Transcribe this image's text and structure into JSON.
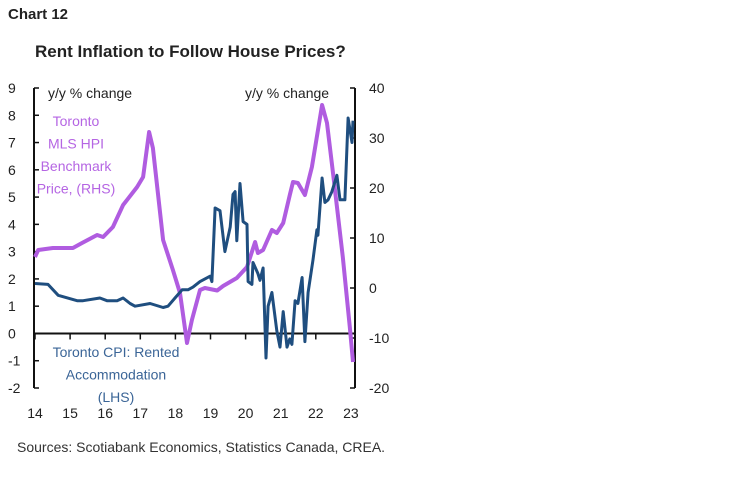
{
  "chart_label": "Chart 12",
  "sources": "Sources: Scotiabank Economics, Statistics Canada, CREA.",
  "chart_data": {
    "type": "line",
    "title": "Rent Inflation to Follow House Prices?",
    "left_axis": {
      "unit_label": "y/y % change",
      "range": [
        -2,
        9
      ],
      "ticks": [
        "9",
        "8",
        "7",
        "6",
        "5",
        "4",
        "3",
        "2",
        "1",
        "0",
        "-1",
        "-2"
      ]
    },
    "right_axis": {
      "unit_label": "y/y % change",
      "range": [
        -20,
        40
      ],
      "ticks": [
        "40",
        "30",
        "20",
        "10",
        "0",
        "-10",
        "-20"
      ]
    },
    "x_axis": {
      "range": [
        14,
        23.1
      ],
      "ticks": [
        "14",
        "15",
        "16",
        "17",
        "18",
        "19",
        "20",
        "21",
        "22",
        "23"
      ]
    },
    "grid": false,
    "series": [
      {
        "name": "Toronto CPI: Rented Accommodation (LHS)",
        "label_lines": [
          "Toronto CPI: Rented",
          "Accommodation",
          "(LHS)"
        ],
        "axis": "left",
        "color": "#1f4e7f",
        "points": [
          [
            14.0,
            1.83
          ],
          [
            14.37,
            1.8
          ],
          [
            14.66,
            1.4
          ],
          [
            15.2,
            1.2
          ],
          [
            15.37,
            1.2
          ],
          [
            15.85,
            1.3
          ],
          [
            16.05,
            1.2
          ],
          [
            16.34,
            1.2
          ],
          [
            16.51,
            1.3
          ],
          [
            16.71,
            1.1
          ],
          [
            16.85,
            1.0
          ],
          [
            17.28,
            1.1
          ],
          [
            17.65,
            0.95
          ],
          [
            17.79,
            1.0
          ],
          [
            17.99,
            1.3
          ],
          [
            18.19,
            1.6
          ],
          [
            18.36,
            1.6
          ],
          [
            18.5,
            1.7
          ],
          [
            18.7,
            1.9
          ],
          [
            18.99,
            2.1
          ],
          [
            19.04,
            1.9
          ],
          [
            19.13,
            4.6
          ],
          [
            19.27,
            4.5
          ],
          [
            19.41,
            3.0
          ],
          [
            19.56,
            3.9
          ],
          [
            19.64,
            5.1
          ],
          [
            19.7,
            5.2
          ],
          [
            19.75,
            3.4
          ],
          [
            19.84,
            5.5
          ],
          [
            19.93,
            4.1
          ],
          [
            20.04,
            4.0
          ],
          [
            20.07,
            1.9
          ],
          [
            20.18,
            1.8
          ],
          [
            20.21,
            2.6
          ],
          [
            20.35,
            2.2
          ],
          [
            20.41,
            1.95
          ],
          [
            20.5,
            2.4
          ],
          [
            20.58,
            -0.9
          ],
          [
            20.64,
            1.0
          ],
          [
            20.75,
            1.5
          ],
          [
            20.89,
            0.1
          ],
          [
            20.98,
            -0.5
          ],
          [
            21.07,
            0.8
          ],
          [
            21.18,
            -0.5
          ],
          [
            21.26,
            -0.2
          ],
          [
            21.32,
            -0.4
          ],
          [
            21.41,
            1.2
          ],
          [
            21.49,
            1.1
          ],
          [
            21.61,
            2.05
          ],
          [
            21.69,
            -0.3
          ],
          [
            21.78,
            1.5
          ],
          [
            21.92,
            2.7
          ],
          [
            22.03,
            3.8
          ],
          [
            22.06,
            3.6
          ],
          [
            22.18,
            5.7
          ],
          [
            22.26,
            4.8
          ],
          [
            22.35,
            4.9
          ],
          [
            22.46,
            5.2
          ],
          [
            22.6,
            5.8
          ],
          [
            22.69,
            4.9
          ],
          [
            22.83,
            4.9
          ],
          [
            22.92,
            7.9
          ],
          [
            23.03,
            7.0
          ],
          [
            23.06,
            7.8
          ]
        ]
      },
      {
        "name": "Toronto MLS HPI Benchmark Price, (RHS)",
        "label_lines": [
          "Toronto",
          "MLS HPI",
          "Benchmark",
          "Price, (RHS)"
        ],
        "axis": "right",
        "color": "#b05ce0",
        "points": [
          [
            14.0,
            6.2
          ],
          [
            14.09,
            7.6
          ],
          [
            14.51,
            8.0
          ],
          [
            15.08,
            8.0
          ],
          [
            15.34,
            9.0
          ],
          [
            15.77,
            10.6
          ],
          [
            15.94,
            10.2
          ],
          [
            16.22,
            12.2
          ],
          [
            16.51,
            16.6
          ],
          [
            16.91,
            20.2
          ],
          [
            17.08,
            22.2
          ],
          [
            17.25,
            31.2
          ],
          [
            17.36,
            28.0
          ],
          [
            17.65,
            9.6
          ],
          [
            17.93,
            3.6
          ],
          [
            18.13,
            -1.0
          ],
          [
            18.33,
            -11.0
          ],
          [
            18.47,
            -6.4
          ],
          [
            18.7,
            -0.4
          ],
          [
            18.84,
            0.0
          ],
          [
            19.19,
            -0.5
          ],
          [
            19.36,
            0.4
          ],
          [
            19.75,
            2.0
          ],
          [
            20.04,
            4.2
          ],
          [
            20.27,
            9.2
          ],
          [
            20.35,
            7.0
          ],
          [
            20.5,
            7.6
          ],
          [
            20.75,
            11.6
          ],
          [
            20.89,
            11.0
          ],
          [
            21.07,
            13.0
          ],
          [
            21.26,
            18.6
          ],
          [
            21.35,
            21.2
          ],
          [
            21.49,
            21.0
          ],
          [
            21.69,
            18.6
          ],
          [
            21.89,
            24.2
          ],
          [
            22.18,
            36.6
          ],
          [
            22.32,
            33.0
          ],
          [
            22.49,
            23.0
          ],
          [
            22.77,
            6.2
          ],
          [
            22.97,
            -7.8
          ],
          [
            23.06,
            -14.8
          ]
        ]
      }
    ]
  }
}
